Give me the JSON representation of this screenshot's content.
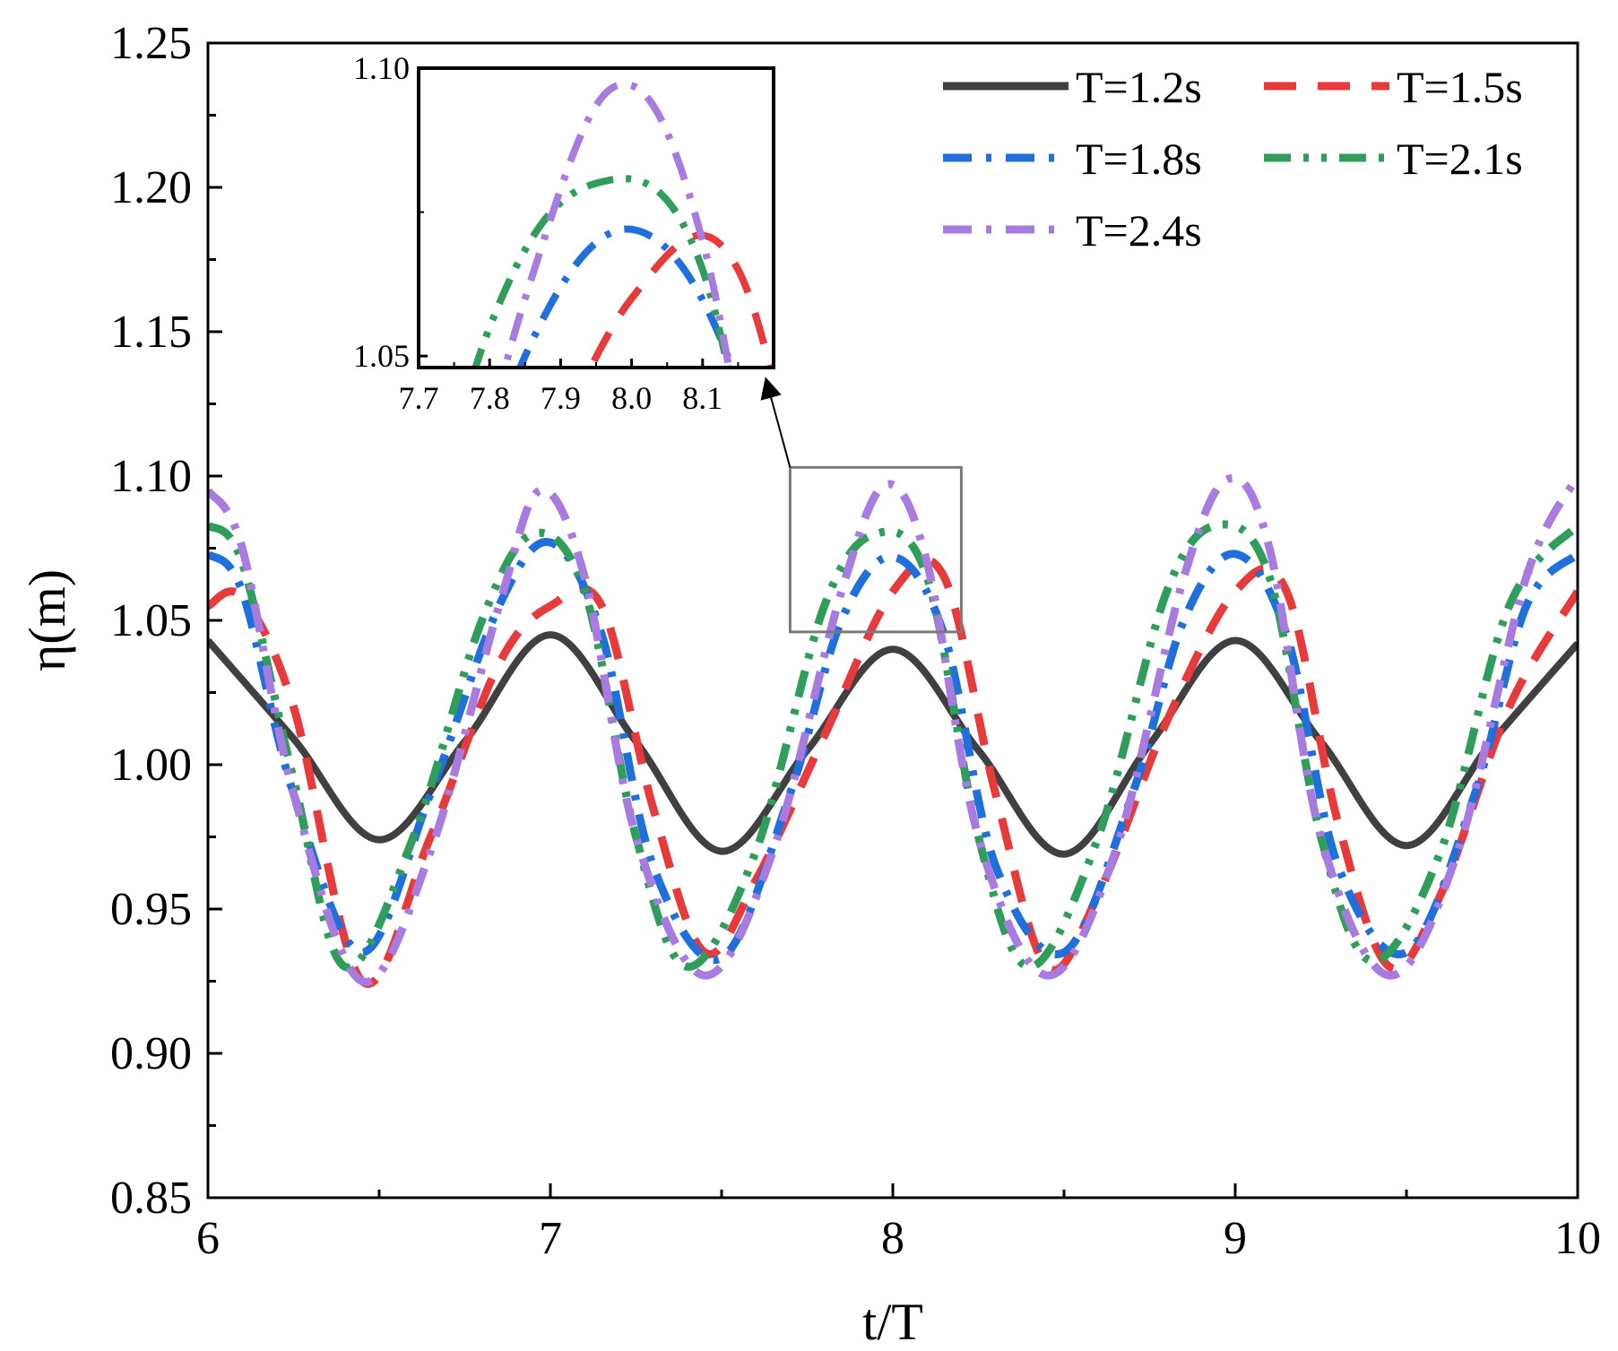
{
  "chart_data": {
    "type": "line",
    "title": "",
    "xlabel": "t/T",
    "ylabel": "η(m)",
    "xlim": [
      6,
      10
    ],
    "ylim": [
      0.85,
      1.25
    ],
    "xticks": [
      "6",
      "7",
      "8",
      "9",
      "10"
    ],
    "yticks": [
      "0.85",
      "0.90",
      "0.95",
      "1.00",
      "1.05",
      "1.10",
      "1.15",
      "1.20",
      "1.25"
    ],
    "grid": false,
    "legend_position": "top-right",
    "series": [
      {
        "name": "T=1.2s",
        "color": "#404040",
        "style": "solid",
        "x": [
          6.0,
          6.25,
          6.5,
          6.75,
          7.0,
          7.25,
          7.5,
          7.75,
          8.0,
          8.25,
          8.5,
          8.75,
          9.0,
          9.25,
          9.5,
          9.75,
          10.0
        ],
        "values": [
          1.043,
          1.009,
          0.974,
          1.008,
          1.045,
          1.008,
          0.97,
          1.005,
          1.04,
          1.005,
          0.969,
          1.007,
          1.043,
          1.008,
          0.972,
          1.008,
          1.042
        ]
      },
      {
        "name": "T=1.5s",
        "color": "#e8393b",
        "style": "dashed",
        "x": [
          6.0,
          6.1,
          6.25,
          6.45,
          6.65,
          6.85,
          7.0,
          7.15,
          7.3,
          7.45,
          7.6,
          7.8,
          8.0,
          8.15,
          8.3,
          8.45,
          8.6,
          8.8,
          9.0,
          9.15,
          9.3,
          9.45,
          9.6,
          9.8,
          10.0
        ],
        "values": [
          1.055,
          1.058,
          1.02,
          0.925,
          0.975,
          1.035,
          1.055,
          1.055,
          0.985,
          0.935,
          0.96,
          1.01,
          1.06,
          1.065,
          0.99,
          0.93,
          0.955,
          1.015,
          1.06,
          1.06,
          0.98,
          0.93,
          0.955,
          1.02,
          1.06
        ]
      },
      {
        "name": "T=1.8s",
        "color": "#1f6fdc",
        "style": "dashdot",
        "x": [
          6.0,
          6.1,
          6.25,
          6.45,
          6.65,
          6.85,
          7.0,
          7.15,
          7.3,
          7.5,
          7.7,
          7.85,
          8.0,
          8.15,
          8.3,
          8.5,
          8.7,
          8.85,
          9.0,
          9.15,
          9.3,
          9.5,
          9.7,
          9.85,
          10.0
        ],
        "values": [
          1.073,
          1.06,
          0.99,
          0.935,
          0.99,
          1.055,
          1.077,
          1.045,
          0.965,
          0.933,
          0.99,
          1.05,
          1.072,
          1.045,
          0.965,
          0.935,
          0.99,
          1.05,
          1.073,
          1.045,
          0.965,
          0.935,
          0.99,
          1.055,
          1.073
        ]
      },
      {
        "name": "T=2.1s",
        "color": "#2f9e5a",
        "style": "dashdotdot",
        "x": [
          6.0,
          6.1,
          6.25,
          6.4,
          6.6,
          6.8,
          6.95,
          7.1,
          7.25,
          7.4,
          7.6,
          7.8,
          7.95,
          8.1,
          8.25,
          8.4,
          8.6,
          8.8,
          8.95,
          9.1,
          9.25,
          9.4,
          9.6,
          9.8,
          10.0
        ],
        "values": [
          1.083,
          1.07,
          0.995,
          0.93,
          0.975,
          1.05,
          1.08,
          1.06,
          0.975,
          0.93,
          0.97,
          1.055,
          1.08,
          1.065,
          0.975,
          0.93,
          0.975,
          1.06,
          1.083,
          1.065,
          0.975,
          0.932,
          0.97,
          1.055,
          1.083
        ]
      },
      {
        "name": "T=2.4s",
        "color": "#a87be0",
        "style": "dashdot",
        "x": [
          6.0,
          6.1,
          6.25,
          6.45,
          6.65,
          6.85,
          6.97,
          7.1,
          7.25,
          7.45,
          7.65,
          7.85,
          7.98,
          8.1,
          8.25,
          8.45,
          8.65,
          8.85,
          8.98,
          9.1,
          9.25,
          9.45,
          9.65,
          9.85,
          10.0
        ],
        "values": [
          1.095,
          1.075,
          0.99,
          0.925,
          0.97,
          1.055,
          1.095,
          1.065,
          0.975,
          0.927,
          0.97,
          1.06,
          1.097,
          1.07,
          0.975,
          0.927,
          0.97,
          1.065,
          1.099,
          1.075,
          0.975,
          0.927,
          0.97,
          1.065,
          1.1
        ]
      }
    ],
    "inset": {
      "xlim": [
        7.7,
        8.2
      ],
      "ylim": [
        1.048,
        1.1
      ],
      "xticks": [
        "7.7",
        "7.8",
        "7.9",
        "8.0",
        "8.1"
      ],
      "yticks": [
        "1.05",
        "1.10"
      ],
      "zoom_region": {
        "x": [
          7.7,
          8.2
        ],
        "y": [
          1.046,
          1.103
        ]
      }
    }
  }
}
